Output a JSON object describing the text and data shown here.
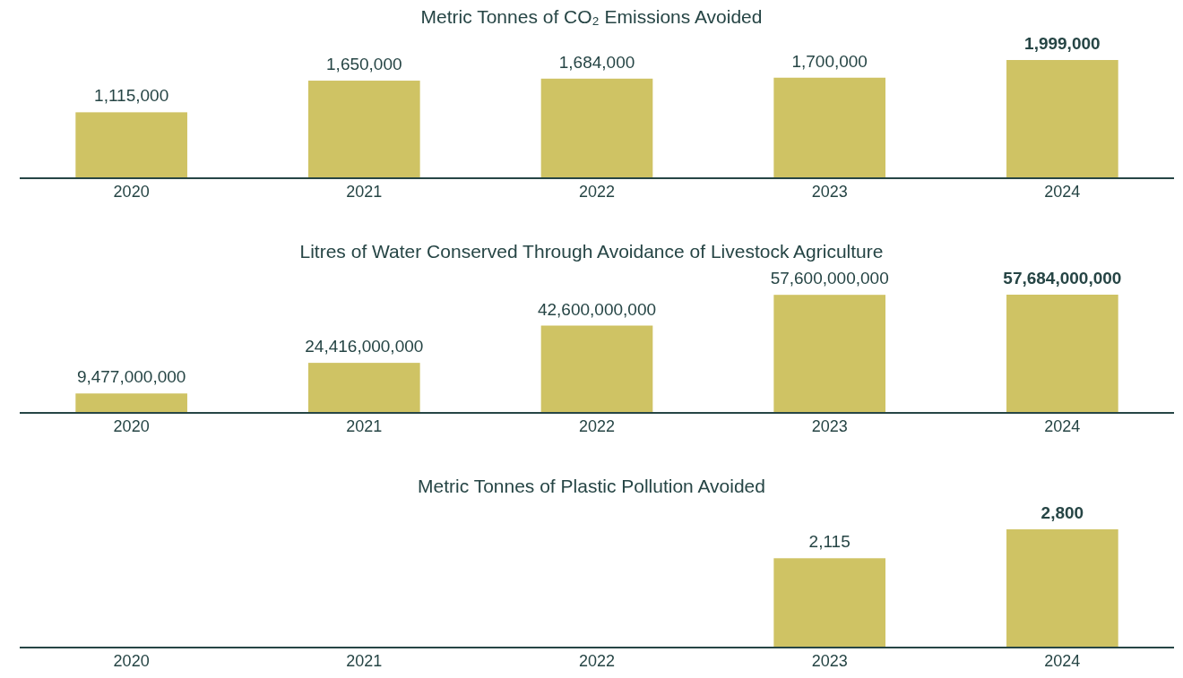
{
  "chart_data": [
    {
      "type": "bar",
      "title": "Metric Tonnes of CO₂ Emissions Avoided",
      "categories": [
        "2020",
        "2021",
        "2022",
        "2023",
        "2024"
      ],
      "values": [
        1115000,
        1650000,
        1684000,
        1700000,
        1999000
      ],
      "value_labels": [
        "1,115,000",
        "1,650,000",
        "1,684,000",
        "1,700,000",
        "1,999,000"
      ],
      "color": "#cfc364"
    },
    {
      "type": "bar",
      "title": "Litres of Water Conserved Through Avoidance of Livestock Agriculture",
      "categories": [
        "2020",
        "2021",
        "2022",
        "2023",
        "2024"
      ],
      "values": [
        9477000000,
        24416000000,
        42600000000,
        57600000000,
        57684000000
      ],
      "value_labels": [
        "9,477,000,000",
        "24,416,000,000",
        "42,600,000,000",
        "57,600,000,000",
        "57,684,000,000"
      ],
      "color": "#cfc364"
    },
    {
      "type": "bar",
      "title": "Metric Tonnes of Plastic Pollution Avoided",
      "categories": [
        "2020",
        "2021",
        "2022",
        "2023",
        "2024"
      ],
      "values": [
        null,
        null,
        null,
        2115,
        2800
      ],
      "value_labels": [
        null,
        null,
        null,
        "2,115",
        "2,800"
      ],
      "color": "#cfc364"
    }
  ]
}
